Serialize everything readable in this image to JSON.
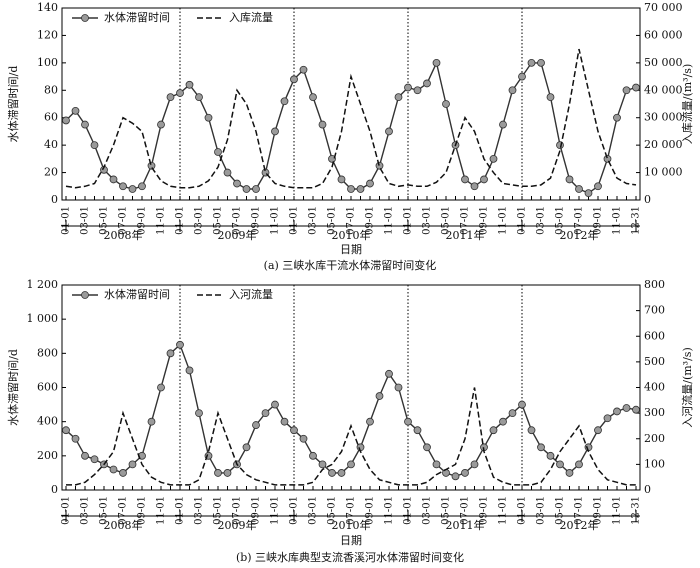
{
  "chart_data": [
    {
      "type": "line",
      "caption": "(a)  三峡水库干流水体滞留时间变化",
      "xlabel": "日期",
      "ylabel": "水体滞留时间/d",
      "y2label": "入库流量/(m³/s)",
      "legend": "upper left",
      "categories": [
        "01-01",
        null,
        "03-01",
        null,
        "05-01",
        null,
        "07-01",
        null,
        "09-01",
        null,
        "11-01",
        null,
        "01-01",
        null,
        "03-01",
        null,
        "05-01",
        null,
        "07-01",
        null,
        "09-01",
        null,
        "11-01",
        null,
        "01-01",
        null,
        "03-01",
        null,
        "05-01",
        null,
        "07-01",
        null,
        "09-01",
        null,
        "11-01",
        null,
        "01-01",
        null,
        "03-01",
        null,
        "05-01",
        null,
        "07-01",
        null,
        "09-01",
        null,
        "11-01",
        null,
        "01-01",
        null,
        "03-01",
        null,
        "05-01",
        null,
        "07-01",
        null,
        "09-01",
        null,
        "11-01",
        null,
        "12-31"
      ],
      "years": [
        "2008年",
        "2009年",
        "2010年",
        "2011年",
        "2012年"
      ],
      "ylim": [
        0,
        140
      ],
      "yticks": [
        0,
        20,
        40,
        60,
        80,
        100,
        120,
        140
      ],
      "y2lim": [
        0,
        70000
      ],
      "y2ticks": [
        0,
        {
          "value": 10000,
          "label": "10 000"
        },
        {
          "value": 20000,
          "label": "20 000"
        },
        {
          "value": 30000,
          "label": "30 000"
        },
        {
          "value": 40000,
          "label": "40 000"
        },
        {
          "value": 50000,
          "label": "50 000"
        },
        {
          "value": 60000,
          "label": "60 000"
        },
        {
          "value": 70000,
          "label": "70 000"
        }
      ],
      "series": [
        {
          "name": "水体滞留时间",
          "color": "#9a9a9a",
          "marker": "circle",
          "values": [
            58,
            65,
            55,
            40,
            22,
            15,
            10,
            8,
            10,
            25,
            55,
            75,
            78,
            84,
            75,
            60,
            35,
            20,
            12,
            8,
            8,
            20,
            50,
            72,
            88,
            95,
            75,
            55,
            30,
            15,
            8,
            8,
            12,
            25,
            50,
            75,
            82,
            80,
            85,
            100,
            70,
            40,
            15,
            10,
            15,
            30,
            55,
            80,
            90,
            100,
            100,
            75,
            40,
            15,
            8,
            5,
            10,
            30,
            60,
            80,
            82
          ]
        },
        {
          "name": "入库流量",
          "color": "#111111",
          "dash": true,
          "axis": "y2",
          "values": [
            5000,
            4500,
            5000,
            6000,
            12000,
            20000,
            30000,
            28000,
            25000,
            12000,
            7000,
            5000,
            4500,
            4500,
            5000,
            7000,
            12000,
            22000,
            40000,
            35000,
            25000,
            10000,
            6000,
            5000,
            4500,
            4500,
            4500,
            6000,
            12000,
            25000,
            45000,
            35000,
            25000,
            12000,
            6000,
            5000,
            5500,
            5000,
            5000,
            6500,
            10000,
            20000,
            30000,
            25000,
            15000,
            10000,
            6000,
            5500,
            5000,
            5000,
            5500,
            8000,
            18000,
            35000,
            55000,
            40000,
            25000,
            15000,
            8000,
            6000,
            5500
          ]
        }
      ]
    },
    {
      "type": "line",
      "caption": "(b)  三峡水库典型支流香溪河水体滞留时间变化",
      "xlabel": "日期",
      "ylabel": "水体滞留时间/d",
      "y2label": "入河流量/(m³/s)",
      "legend": "upper left",
      "categories": [
        "01-01",
        null,
        "03-01",
        null,
        "05-01",
        null,
        "07-01",
        null,
        "09-01",
        null,
        "11-01",
        null,
        "01-01",
        null,
        "03-01",
        null,
        "05-01",
        null,
        "07-01",
        null,
        "09-01",
        null,
        "11-01",
        null,
        "01-01",
        null,
        "03-01",
        null,
        "05-01",
        null,
        "07-01",
        null,
        "09-01",
        null,
        "11-01",
        null,
        "01-01",
        null,
        "03-01",
        null,
        "05-01",
        null,
        "07-01",
        null,
        "09-01",
        null,
        "11-01",
        null,
        "01-01",
        null,
        "03-01",
        null,
        "05-01",
        null,
        "07-01",
        null,
        "09-01",
        null,
        "11-01",
        null,
        "12-31"
      ],
      "years": [
        "2008年",
        "2009年",
        "2010年",
        "2011年",
        "2012年"
      ],
      "ylim": [
        0,
        1200
      ],
      "yticks": [
        0,
        200,
        400,
        600,
        800,
        {
          "value": 1000,
          "label": "1 000"
        },
        {
          "value": 1200,
          "label": "1 200"
        }
      ],
      "y2lim": [
        0,
        800
      ],
      "y2ticks": [
        0,
        100,
        200,
        300,
        400,
        500,
        600,
        700,
        800
      ],
      "series": [
        {
          "name": "水体滞留时间",
          "color": "#9a9a9a",
          "marker": "circle",
          "values": [
            350,
            300,
            200,
            180,
            150,
            120,
            100,
            150,
            200,
            400,
            600,
            800,
            850,
            700,
            450,
            200,
            100,
            100,
            150,
            250,
            380,
            450,
            500,
            400,
            350,
            300,
            200,
            150,
            100,
            100,
            150,
            250,
            400,
            550,
            680,
            600,
            400,
            350,
            250,
            150,
            100,
            80,
            100,
            150,
            250,
            350,
            400,
            450,
            500,
            350,
            250,
            200,
            150,
            100,
            150,
            250,
            350,
            420,
            460,
            480,
            470
          ]
        },
        {
          "name": "入河流量",
          "color": "#111111",
          "dash": true,
          "axis": "y2",
          "values": [
            20,
            20,
            30,
            60,
            100,
            150,
            300,
            200,
            100,
            50,
            30,
            20,
            20,
            20,
            40,
            150,
            300,
            200,
            100,
            60,
            40,
            30,
            20,
            20,
            20,
            20,
            30,
            80,
            100,
            150,
            250,
            150,
            80,
            40,
            30,
            20,
            20,
            20,
            30,
            60,
            80,
            100,
            200,
            400,
            150,
            50,
            30,
            20,
            20,
            20,
            30,
            80,
            150,
            200,
            250,
            150,
            80,
            40,
            30,
            20,
            20
          ]
        }
      ]
    }
  ]
}
